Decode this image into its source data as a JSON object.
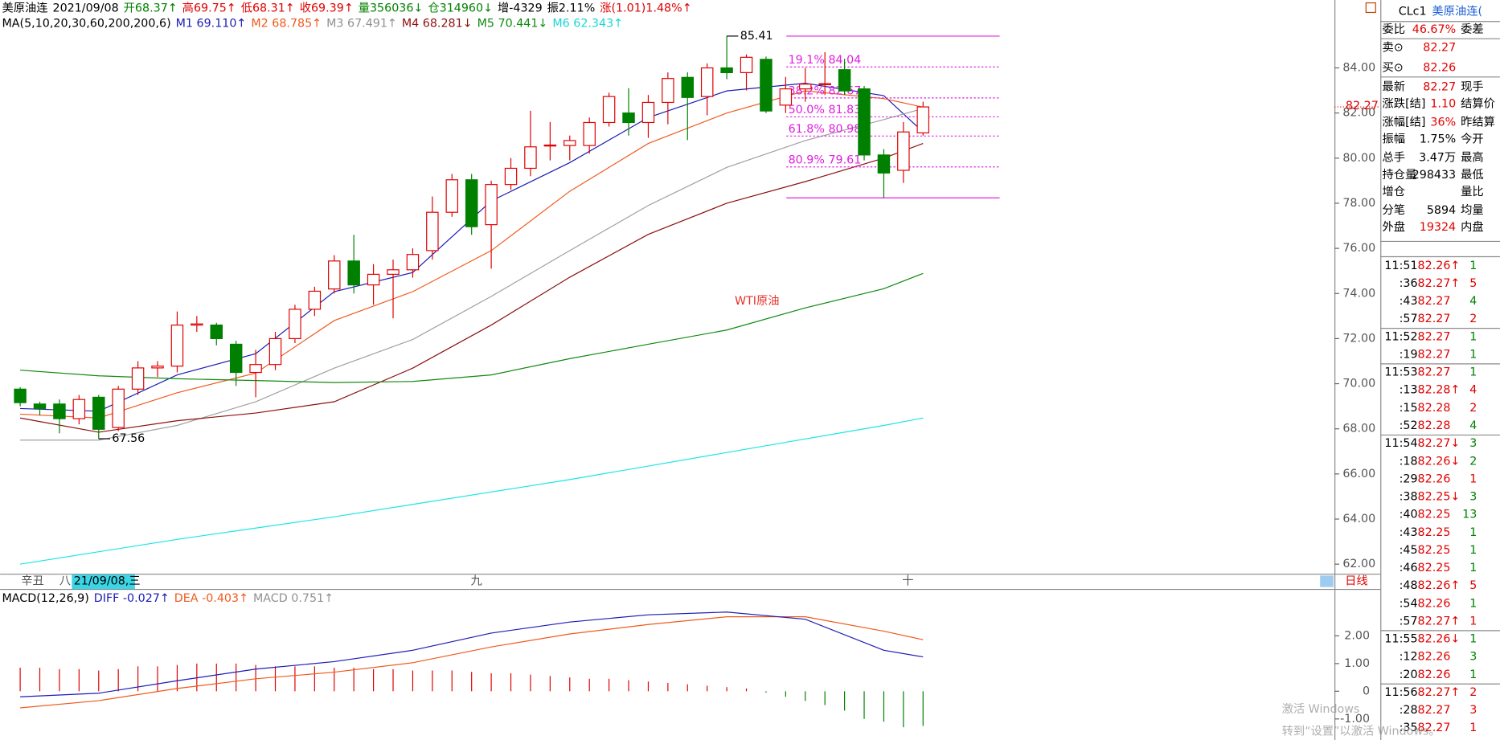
{
  "header": {
    "line1": [
      {
        "text": "美原油连",
        "color": "#000000"
      },
      {
        "text": "2021/09/08",
        "color": "#000000"
      },
      {
        "text": "开68.37↑",
        "color": "#008000"
      },
      {
        "text": "高69.75↑",
        "color": "#e00000"
      },
      {
        "text": "低68.31↑",
        "color": "#e00000"
      },
      {
        "text": "收69.39↑",
        "color": "#e00000"
      },
      {
        "text": "量356036↓",
        "color": "#008000"
      },
      {
        "text": "仓314960↓",
        "color": "#008000"
      },
      {
        "text": "增-4329",
        "color": "#000000"
      },
      {
        "text": "振2.11%",
        "color": "#000000"
      },
      {
        "text": "涨(1.01)1.48%↑",
        "color": "#e00000"
      }
    ],
    "line2": [
      {
        "text": "MA(5,10,20,30,60,200,200,6)",
        "color": "#000000"
      },
      {
        "text": "M1 69.110↑",
        "color": "#1c1cb4"
      },
      {
        "text": "M2 68.785↑",
        "color": "#f05a1e"
      },
      {
        "text": "M3 67.491↑",
        "color": "#909090"
      },
      {
        "text": "M4 68.281↓",
        "color": "#8b1010"
      },
      {
        "text": "M5 70.441↓",
        "color": "#118a11"
      },
      {
        "text": "M6 62.343↑",
        "color": "#19d6d6"
      }
    ]
  },
  "chart": {
    "type": "candlestick",
    "ylim": [
      61.58,
      87.01
    ],
    "yticks": [
      {
        "value": 62,
        "label": "62.00"
      },
      {
        "value": 64,
        "label": "64.00"
      },
      {
        "value": 66,
        "label": "66.00"
      },
      {
        "value": 68,
        "label": "68.00"
      },
      {
        "value": 70,
        "label": "70.00"
      },
      {
        "value": 72,
        "label": "72.00"
      },
      {
        "value": 74,
        "label": "74.00"
      },
      {
        "value": 76,
        "label": "76.00"
      },
      {
        "value": 78,
        "label": "78.00"
      },
      {
        "value": 80,
        "label": "80.00"
      },
      {
        "value": 82,
        "label": "82.00"
      },
      {
        "value": 84,
        "label": "84.00"
      }
    ],
    "up_color": "#e00000",
    "down_color": "#008000",
    "candles": [
      [
        69.76,
        69.85,
        69.0,
        69.16
      ],
      [
        69.1,
        69.2,
        68.6,
        68.9
      ],
      [
        69.1,
        69.3,
        67.8,
        68.45
      ],
      [
        68.45,
        69.5,
        68.2,
        69.3
      ],
      [
        69.4,
        69.5,
        67.56,
        67.98
      ],
      [
        68.06,
        69.9,
        67.9,
        69.76
      ],
      [
        69.76,
        71.0,
        69.5,
        70.7
      ],
      [
        70.7,
        71.0,
        70.3,
        70.78
      ],
      [
        70.78,
        73.2,
        70.5,
        72.6
      ],
      [
        72.6,
        73.0,
        72.3,
        72.65
      ],
      [
        72.6,
        72.7,
        71.7,
        72.0
      ],
      [
        71.75,
        71.9,
        69.9,
        70.5
      ],
      [
        70.5,
        71.5,
        69.4,
        70.85
      ],
      [
        70.85,
        72.3,
        70.6,
        72.0
      ],
      [
        72.0,
        73.5,
        71.8,
        73.3
      ],
      [
        73.3,
        74.3,
        73.0,
        74.1
      ],
      [
        74.2,
        75.7,
        74.0,
        75.44
      ],
      [
        75.44,
        76.6,
        74.0,
        74.38
      ],
      [
        74.38,
        75.3,
        73.5,
        74.85
      ],
      [
        74.85,
        75.5,
        72.9,
        75.05
      ],
      [
        75.05,
        76.0,
        74.7,
        75.73
      ],
      [
        75.9,
        78.3,
        75.5,
        77.6
      ],
      [
        77.6,
        79.3,
        77.4,
        79.04
      ],
      [
        79.04,
        79.3,
        76.6,
        76.96
      ],
      [
        77.05,
        79.0,
        75.1,
        78.83
      ],
      [
        78.83,
        80.0,
        78.6,
        79.55
      ],
      [
        79.55,
        82.1,
        79.2,
        80.5
      ],
      [
        80.55,
        81.6,
        79.9,
        80.58
      ],
      [
        80.56,
        81.0,
        79.9,
        80.78
      ],
      [
        80.56,
        81.8,
        80.2,
        81.58
      ],
      [
        81.58,
        82.9,
        81.4,
        82.73
      ],
      [
        82.0,
        83.1,
        81.0,
        81.58
      ],
      [
        81.58,
        82.8,
        80.9,
        82.47
      ],
      [
        82.47,
        83.8,
        81.5,
        83.53
      ],
      [
        83.58,
        83.8,
        80.8,
        82.69
      ],
      [
        82.73,
        84.2,
        81.9,
        84.0
      ],
      [
        84.0,
        85.41,
        83.5,
        83.79
      ],
      [
        83.79,
        84.6,
        83.0,
        84.47
      ],
      [
        84.38,
        84.5,
        82.0,
        82.09
      ],
      [
        82.35,
        83.6,
        82.0,
        83.07
      ],
      [
        83.07,
        84.0,
        82.5,
        83.28
      ],
      [
        83.28,
        84.7,
        82.8,
        83.3
      ],
      [
        83.92,
        84.4,
        82.8,
        82.98
      ],
      [
        83.07,
        83.2,
        79.9,
        80.14
      ],
      [
        80.14,
        80.4,
        78.24,
        79.34
      ],
      [
        79.46,
        81.6,
        78.9,
        81.16
      ],
      [
        81.12,
        82.5,
        81.0,
        82.27
      ]
    ],
    "ma": {
      "x": [
        0,
        4,
        8,
        12,
        16,
        20,
        24,
        28,
        32,
        36,
        40,
        44,
        46
      ],
      "series": [
        {
          "color": "#1c1cb4",
          "values": [
            68.9,
            68.78,
            70.39,
            71.33,
            74.08,
            74.93,
            78.1,
            79.8,
            81.8,
            82.98,
            83.32,
            82.77,
            81.16
          ]
        },
        {
          "color": "#f05a1e",
          "values": [
            68.65,
            68.48,
            69.6,
            70.47,
            72.8,
            74.08,
            75.9,
            78.53,
            80.65,
            82.0,
            82.98,
            82.64,
            82.26
          ]
        },
        {
          "color": "#a0a0a0",
          "values": [
            67.5,
            67.5,
            68.15,
            69.2,
            70.69,
            71.96,
            73.87,
            75.9,
            77.9,
            79.59,
            80.78,
            81.71,
            82.2
          ]
        },
        {
          "color": "#8b1010",
          "values": [
            68.48,
            67.85,
            68.36,
            68.7,
            69.2,
            70.69,
            72.6,
            74.72,
            76.62,
            78.0,
            78.96,
            80.0,
            80.65
          ]
        },
        {
          "color": "#118a11",
          "values": [
            70.6,
            70.35,
            70.22,
            70.14,
            70.05,
            70.1,
            70.39,
            71.11,
            71.75,
            72.38,
            73.36,
            74.21,
            74.89
          ]
        },
        {
          "color": "#19e6e6",
          "values": [
            62.0,
            62.55,
            63.1,
            63.6,
            64.1,
            64.65,
            65.2,
            65.75,
            66.35,
            66.95,
            67.55,
            68.15,
            68.48
          ]
        }
      ]
    },
    "fib": {
      "color": "#e020e0",
      "high": 85.41,
      "low": 78.24,
      "levels": [
        {
          "value": 84.04,
          "label": "19.1% 84.04"
        },
        {
          "value": 82.67,
          "label": "38.2% 82.67"
        },
        {
          "value": 81.83,
          "label": "50.0% 81.83"
        },
        {
          "value": 80.98,
          "label": "61.8% 80.98"
        },
        {
          "value": 79.61,
          "label": "80.9% 79.61"
        }
      ]
    },
    "high_label": 85.41,
    "low_label": 67.56,
    "last": 82.27,
    "annotation": "WTI原油",
    "time_axis": [
      "辛丑",
      "八",
      "21/09/08,三",
      "九",
      "十"
    ],
    "period": "日线"
  },
  "macd": {
    "label": [
      {
        "text": "MACD(12,26,9)",
        "color": "#000000"
      },
      {
        "text": "DIFF -0.027↑",
        "color": "#1c1cb4"
      },
      {
        "text": "DEA -0.403↑",
        "color": "#f05a1e"
      },
      {
        "text": "MACD 0.751↑",
        "color": "#909090"
      }
    ],
    "ylim": [
      -1.76,
      3.66
    ],
    "yticks": [
      {
        "value": 2,
        "label": "2.00"
      },
      {
        "value": 1,
        "label": "1.00"
      },
      {
        "value": 0,
        "label": "0"
      },
      {
        "value": -1,
        "label": "-1.00"
      }
    ],
    "x": [
      0,
      4,
      8,
      12,
      16,
      20,
      24,
      28,
      32,
      36,
      40,
      44,
      46
    ],
    "diff": {
      "color": "#1c1cb4",
      "values": [
        -0.2,
        -0.07,
        0.38,
        0.8,
        1.07,
        1.48,
        2.1,
        2.5,
        2.76,
        2.86,
        2.6,
        1.48,
        1.24
      ]
    },
    "dea": {
      "color": "#f05a1e",
      "values": [
        -0.6,
        -0.34,
        0.1,
        0.45,
        0.69,
        1.03,
        1.6,
        2.07,
        2.41,
        2.69,
        2.69,
        2.17,
        1.86
      ]
    },
    "hist": [
      0.85,
      0.85,
      0.8,
      0.8,
      0.75,
      0.8,
      0.9,
      0.9,
      0.95,
      1.0,
      1.0,
      1.0,
      0.95,
      0.9,
      0.9,
      0.9,
      0.85,
      0.85,
      0.8,
      0.8,
      0.75,
      0.75,
      0.75,
      0.7,
      0.65,
      0.65,
      0.6,
      0.55,
      0.5,
      0.45,
      0.45,
      0.4,
      0.35,
      0.3,
      0.25,
      0.2,
      0.15,
      0.1,
      -0.05,
      -0.2,
      -0.35,
      -0.5,
      -0.7,
      -1.0,
      -1.1,
      -1.3,
      -1.25
    ]
  },
  "quote": {
    "code": "CLc1",
    "name": "美原油连(",
    "rows": [
      {
        "label": "委比",
        "value": "46.67%",
        "color": "#e00000",
        "label2": "委差"
      },
      {
        "label": "卖⊙",
        "value": "82.27",
        "color": "#e00000"
      },
      {
        "label": "买⊙",
        "value": "82.26",
        "color": "#e00000"
      },
      {
        "label": "最新",
        "value": "82.27",
        "color": "#e00000",
        "label2": "现手"
      },
      {
        "label": "涨跌[结]",
        "value": "1.10",
        "color": "#e00000",
        "label2": "结算价"
      },
      {
        "label": "涨幅[结]",
        "value": "36%",
        "color": "#e00000",
        "label2": "昨结算"
      },
      {
        "label": "振幅",
        "value": "1.75%",
        "color": "#000000",
        "label2": "今开"
      },
      {
        "label": "总手",
        "value": "3.47万",
        "color": "#000000",
        "label2": "最高"
      },
      {
        "label": "持仓量",
        "value": "298433",
        "color": "#000000",
        "label2": "最低"
      },
      {
        "label": "增仓",
        "label2": "量比"
      },
      {
        "label": "分笔",
        "value": "5894",
        "color": "#000000",
        "label2": "均量"
      },
      {
        "label": "外盘",
        "value": "19324",
        "color": "#e00000",
        "label2": "内盘"
      }
    ]
  },
  "ticks": [
    [
      "11:51",
      "82.26↑",
      "1",
      "#008000"
    ],
    [
      ":36",
      "82.27↑",
      "5",
      "#e00000"
    ],
    [
      ":43",
      "82.27",
      "4",
      "#008000"
    ],
    [
      ":57",
      "82.27",
      "2",
      "#e00000"
    ],
    [
      "11:52",
      "82.27",
      "1",
      "#008000"
    ],
    [
      ":19",
      "82.27",
      "1",
      "#008000"
    ],
    [
      "11:53",
      "82.27",
      "1",
      "#008000"
    ],
    [
      ":13",
      "82.28↑",
      "4",
      "#e00000"
    ],
    [
      ":15",
      "82.28",
      "2",
      "#e00000"
    ],
    [
      ":52",
      "82.28",
      "4",
      "#008000"
    ],
    [
      "11:54",
      "82.27↓",
      "3",
      "#008000"
    ],
    [
      ":18",
      "82.26↓",
      "2",
      "#008000"
    ],
    [
      ":29",
      "82.26",
      "1",
      "#e00000"
    ],
    [
      ":38",
      "82.25↓",
      "3",
      "#008000"
    ],
    [
      ":40",
      "82.25",
      "13",
      "#008000"
    ],
    [
      ":43",
      "82.25",
      "1",
      "#008000"
    ],
    [
      ":45",
      "82.25",
      "1",
      "#008000"
    ],
    [
      ":46",
      "82.25",
      "1",
      "#008000"
    ],
    [
      ":48",
      "82.26↑",
      "5",
      "#e00000"
    ],
    [
      ":54",
      "82.26",
      "1",
      "#008000"
    ],
    [
      ":57",
      "82.27↑",
      "1",
      "#e00000"
    ],
    [
      "11:55",
      "82.26↓",
      "1",
      "#008000"
    ],
    [
      ":12",
      "82.26",
      "3",
      "#008000"
    ],
    [
      ":20",
      "82.26",
      "1",
      "#008000"
    ],
    [
      "11:56",
      "82.27↑",
      "2",
      "#e00000"
    ],
    [
      ":28",
      "82.27",
      "3",
      "#e00000"
    ],
    [
      ":35",
      "82.27",
      "1",
      "#e00000"
    ]
  ],
  "watermark": {
    "line1": "激活 Windows",
    "line2": "转到“设置”以激活 Windows。"
  }
}
